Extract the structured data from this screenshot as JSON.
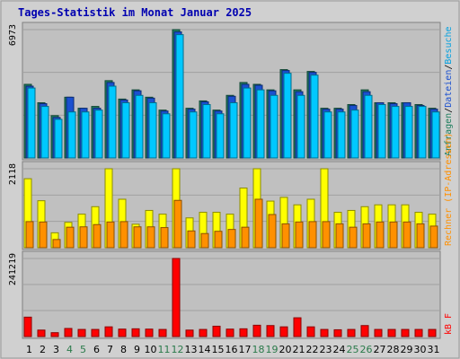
{
  "chart_data": {
    "type": "bar",
    "title": "Tages-Statistik im Monat Januar 2025",
    "categories": [
      "1",
      "2",
      "3",
      "4",
      "5",
      "6",
      "7",
      "8",
      "9",
      "10",
      "11",
      "12",
      "13",
      "14",
      "15",
      "16",
      "17",
      "18",
      "19",
      "20",
      "21",
      "22",
      "23",
      "24",
      "25",
      "26",
      "27",
      "28",
      "29",
      "30",
      "31"
    ],
    "weekend_days": [
      "4",
      "5",
      "11",
      "12",
      "18",
      "19",
      "25",
      "26"
    ],
    "panels": [
      {
        "name": "top",
        "ylim": [
          0,
          6973
        ],
        "max_label": "6973",
        "side_label": {
          "parts": [
            "Anfragen",
            "/",
            "Dateien",
            "/",
            "Besuche"
          ]
        },
        "series": [
          {
            "name": "Anfragen",
            "color": "#1f7f5f",
            "values": [
              4000,
              3000,
              2300,
              3300,
              2700,
              2800,
              4200,
              3200,
              3700,
              3300,
              2600,
              6973,
              2700,
              3100,
              2600,
              3400,
              4100,
              4000,
              3700,
              4800,
              3700,
              4700,
              2700,
              2700,
              2900,
              3700,
              3000,
              3000,
              3000,
              2900,
              2700
            ]
          },
          {
            "name": "Dateien",
            "color": "#1a50d0",
            "values": [
              3900,
              2950,
              2200,
              3300,
              2700,
              2700,
              4100,
              3150,
              3650,
              3250,
              2550,
              6850,
              2650,
              3050,
              2550,
              3350,
              4000,
              3950,
              3650,
              4750,
              3600,
              4650,
              2650,
              2650,
              2850,
              3600,
              3000,
              2950,
              3000,
              2850,
              2650
            ]
          },
          {
            "name": "Besuche",
            "color": "#00c8ff",
            "values": [
              3800,
              2800,
              2100,
              2500,
              2500,
              2600,
              3900,
              3000,
              3400,
              3000,
              2400,
              6700,
              2500,
              2900,
              2400,
              3000,
              3800,
              3700,
              3400,
              4600,
              3400,
              4500,
              2500,
              2500,
              2600,
              3400,
              2900,
              2800,
              2800,
              2800,
              2500
            ]
          }
        ]
      },
      {
        "name": "middle",
        "ylim": [
          0,
          2118
        ],
        "max_label": "2118",
        "side_label": {
          "parts": [
            "Rechner",
            " (IP-Adressen)"
          ]
        },
        "series": [
          {
            "name": "Rechner",
            "color": "#ffff00",
            "values": [
              1850,
              1260,
              400,
              680,
              900,
              1100,
              2118,
              1300,
              630,
              1000,
              900,
              2118,
              800,
              950,
              950,
              900,
              1600,
              2118,
              1250,
              1350,
              1150,
              1300,
              2118,
              950,
              1000,
              1100,
              1150,
              1150,
              1150,
              950,
              900
            ]
          },
          {
            "name": "IP-Adressen",
            "color": "#ff9000",
            "values": [
              700,
              690,
              220,
              550,
              560,
              620,
              690,
              700,
              560,
              560,
              540,
              1270,
              450,
              380,
              440,
              490,
              550,
              1300,
              890,
              640,
              690,
              700,
              700,
              640,
              550,
              640,
              690,
              690,
              690,
              640,
              580
            ]
          }
        ]
      },
      {
        "name": "bottom",
        "ylim": [
          0,
          241219
        ],
        "max_label": "241219",
        "side_label": {
          "parts": [
            "kB F"
          ]
        },
        "series": [
          {
            "name": "kB F",
            "color": "#ff0000",
            "values": [
              60000,
              20000,
              12000,
              25000,
              22000,
              22000,
              30000,
              23000,
              24000,
              23000,
              22000,
              241219,
              20000,
              22000,
              32000,
              23000,
              24000,
              35000,
              34000,
              30000,
              58000,
              30000,
              22000,
              21000,
              22000,
              34000,
              22000,
              22000,
              22000,
              22000,
              22000
            ]
          }
        ]
      }
    ]
  },
  "colors": {
    "background": "#d0d0d0",
    "panel": "#c0c0c0",
    "title": "#0000b0",
    "weekday_tick": "#000000",
    "weekend_tick": "#2a7a4a"
  }
}
